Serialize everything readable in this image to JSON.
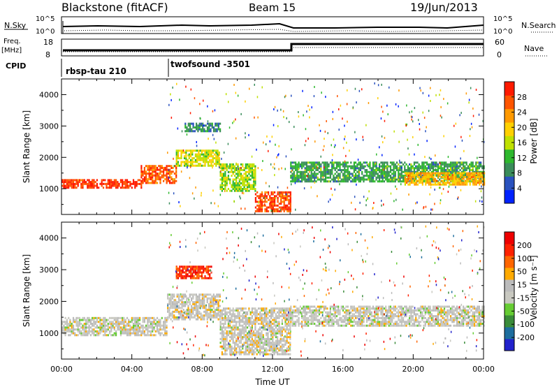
{
  "header": {
    "station": "Blackstone (fitACF)",
    "beam": "Beam 15",
    "date": "19/Jun/2013"
  },
  "strip_panels": {
    "nsky": {
      "label": "N.Sky",
      "ticks": [
        "10^5",
        "10^0"
      ],
      "right_label": "N.Search",
      "right_ticks": [
        "10^5",
        "10^0"
      ]
    },
    "freq": {
      "label_top": "Freq.",
      "label_unit": "[MHz]",
      "ticks": [
        "18",
        "8"
      ],
      "right_label": "Nave",
      "right_ticks": [
        "60",
        "0"
      ]
    },
    "cpid": {
      "label": "CPID",
      "modes": [
        "rbsp-tau 210",
        "twofsound -3501"
      ]
    }
  },
  "colors": {
    "power_scale": [
      "#0022ff",
      "#2a52be",
      "#3a8c5a",
      "#2eb82e",
      "#bfe000",
      "#ffd000",
      "#ff9900",
      "#ff5500",
      "#ff1a00"
    ],
    "velocity_scale": [
      "#2222cc",
      "#1e6e9e",
      "#3a8c3a",
      "#66cc33",
      "#c8c8c0",
      "#bbbbbb",
      "#ffaa00",
      "#ff6600",
      "#ff2200",
      "#ee0000"
    ]
  },
  "chart_data": [
    {
      "type": "heatmap",
      "name": "power",
      "xlabel": "",
      "ylabel": "Slant Range [km]",
      "xlim": [
        0,
        24
      ],
      "ylim": [
        180,
        4500
      ],
      "yticks": [
        "1000",
        "2000",
        "3000",
        "4000"
      ],
      "colorbar": {
        "label": "Power [dB]",
        "ticks": [
          "28",
          "24",
          "20",
          "16",
          "12",
          "8",
          "4"
        ],
        "range": [
          0,
          30
        ]
      },
      "bands": [
        {
          "t0": 0.0,
          "t1": 4.5,
          "r0": 1000,
          "r1": 1250,
          "value": 27
        },
        {
          "t0": 4.5,
          "t1": 6.5,
          "r0": 1150,
          "r1": 1700,
          "value": 25
        },
        {
          "t0": 6.5,
          "t1": 9.0,
          "r0": 1700,
          "r1": 2200,
          "value": 16
        },
        {
          "t0": 9.0,
          "t1": 11.0,
          "r0": 900,
          "r1": 1800,
          "value": 14
        },
        {
          "t0": 11.0,
          "t1": 13.0,
          "r0": 250,
          "r1": 900,
          "value": 26
        },
        {
          "t0": 13.0,
          "t1": 24.0,
          "r0": 1200,
          "r1": 1850,
          "value": 10
        },
        {
          "t0": 19.5,
          "t1": 24.0,
          "r0": 1100,
          "r1": 1500,
          "value": 20
        },
        {
          "t0": 7.0,
          "t1": 9.0,
          "r0": 2800,
          "r1": 3100,
          "value": 8
        }
      ]
    },
    {
      "type": "heatmap",
      "name": "velocity",
      "xlabel": "Time UT",
      "ylabel": "Slant Range [km]",
      "xlim": [
        0,
        24
      ],
      "ylim": [
        180,
        4500
      ],
      "xticks": [
        "00:00",
        "04:00",
        "08:00",
        "12:00",
        "16:00",
        "20:00",
        "00:00"
      ],
      "yticks": [
        "1000",
        "2000",
        "3000",
        "4000"
      ],
      "colorbar": {
        "label": "Velocity [m s⁻¹]",
        "ticks": [
          "200",
          "100",
          "50",
          "15",
          "-15",
          "-50",
          "-100",
          "-200"
        ],
        "range": [
          -250,
          250
        ]
      },
      "bands": [
        {
          "t0": 0.0,
          "t1": 6.0,
          "r0": 900,
          "r1": 1500,
          "value": 0
        },
        {
          "t0": 6.0,
          "t1": 9.0,
          "r0": 1400,
          "r1": 2200,
          "value": 10
        },
        {
          "t0": 9.0,
          "t1": 13.0,
          "r0": 300,
          "r1": 1800,
          "value": 5
        },
        {
          "t0": 13.0,
          "t1": 24.0,
          "r0": 1200,
          "r1": 1850,
          "value": 0
        },
        {
          "t0": 6.5,
          "t1": 8.5,
          "r0": 2700,
          "r1": 3100,
          "value": 180
        }
      ]
    }
  ]
}
